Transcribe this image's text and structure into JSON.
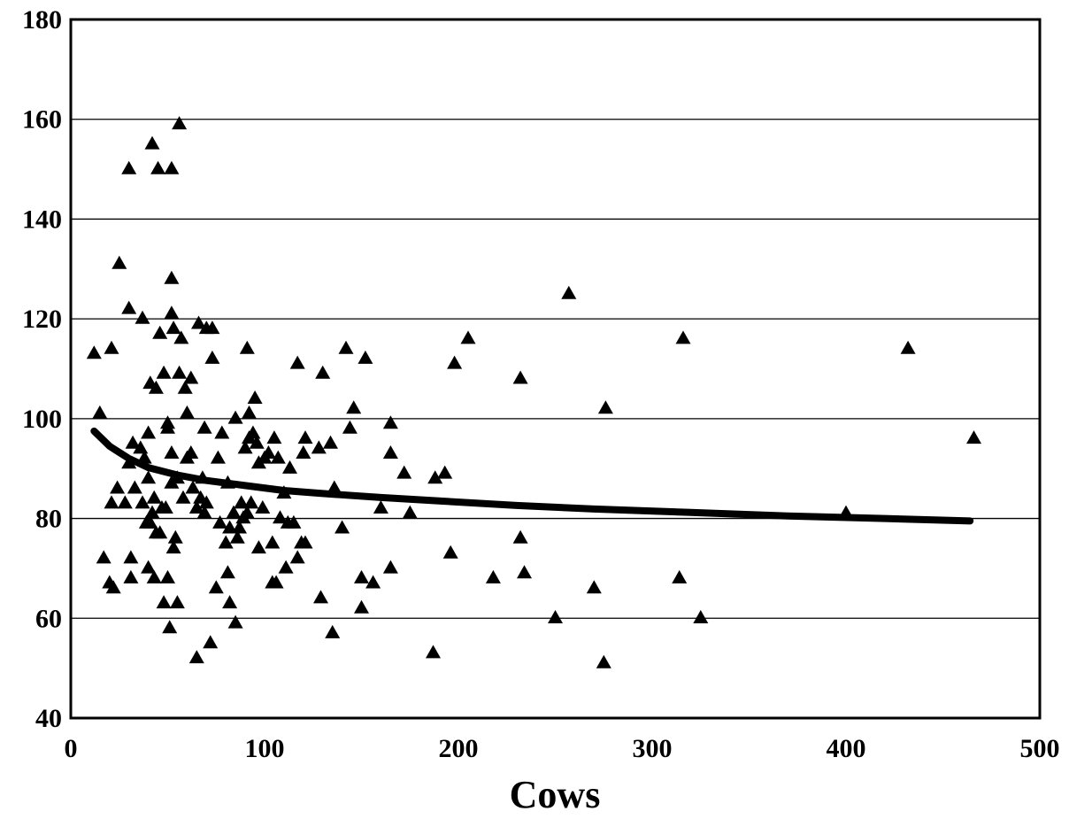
{
  "chart_data": {
    "type": "scatter",
    "title": "",
    "xlabel": "Cows",
    "ylabel": "",
    "xlim": [
      0,
      500
    ],
    "ylim": [
      40,
      180
    ],
    "xticks": [
      0,
      100,
      200,
      300,
      400,
      500
    ],
    "yticks": [
      40,
      60,
      80,
      100,
      120,
      140,
      160,
      180
    ],
    "grid": {
      "y": true,
      "x": false
    },
    "legend": "none",
    "marker": "triangle",
    "colors": {
      "points": "#000000",
      "trend": "#000000",
      "grid": "#000000",
      "background": "#ffffff"
    },
    "points": [
      [
        12,
        113
      ],
      [
        15,
        101
      ],
      [
        17,
        72
      ],
      [
        20,
        67
      ],
      [
        21,
        114
      ],
      [
        21,
        83
      ],
      [
        22,
        66
      ],
      [
        24,
        86
      ],
      [
        25,
        131
      ],
      [
        28,
        83
      ],
      [
        30,
        150
      ],
      [
        30,
        122
      ],
      [
        30,
        91
      ],
      [
        31,
        72
      ],
      [
        31,
        68
      ],
      [
        32,
        95
      ],
      [
        33,
        86
      ],
      [
        36,
        94
      ],
      [
        37,
        83
      ],
      [
        37,
        120
      ],
      [
        38,
        92
      ],
      [
        39,
        79
      ],
      [
        40,
        88
      ],
      [
        40,
        97
      ],
      [
        40,
        70
      ],
      [
        41,
        79
      ],
      [
        41,
        107
      ],
      [
        42,
        81
      ],
      [
        42,
        155
      ],
      [
        43,
        68
      ],
      [
        43,
        84
      ],
      [
        44,
        77
      ],
      [
        44,
        106
      ],
      [
        45,
        150
      ],
      [
        46,
        117
      ],
      [
        46,
        77
      ],
      [
        47,
        82
      ],
      [
        48,
        109
      ],
      [
        48,
        63
      ],
      [
        49,
        82
      ],
      [
        50,
        98
      ],
      [
        50,
        99
      ],
      [
        50,
        68
      ],
      [
        51,
        58
      ],
      [
        52,
        150
      ],
      [
        52,
        93
      ],
      [
        52,
        87
      ],
      [
        52,
        121
      ],
      [
        52,
        128
      ],
      [
        53,
        74
      ],
      [
        53,
        118
      ],
      [
        54,
        76
      ],
      [
        55,
        88
      ],
      [
        55,
        63
      ],
      [
        56,
        159
      ],
      [
        56,
        109
      ],
      [
        57,
        116
      ],
      [
        58,
        84
      ],
      [
        59,
        106
      ],
      [
        60,
        101
      ],
      [
        60,
        92
      ],
      [
        62,
        93
      ],
      [
        62,
        108
      ],
      [
        63,
        86
      ],
      [
        65,
        52
      ],
      [
        65,
        82
      ],
      [
        66,
        119
      ],
      [
        67,
        84
      ],
      [
        68,
        88
      ],
      [
        69,
        98
      ],
      [
        69,
        81
      ],
      [
        70,
        118
      ],
      [
        70,
        83
      ],
      [
        72,
        55
      ],
      [
        73,
        112
      ],
      [
        73,
        118
      ],
      [
        75,
        66
      ],
      [
        76,
        92
      ],
      [
        77,
        79
      ],
      [
        78,
        97
      ],
      [
        80,
        75
      ],
      [
        81,
        69
      ],
      [
        81,
        87
      ],
      [
        82,
        63
      ],
      [
        82,
        78
      ],
      [
        84,
        81
      ],
      [
        85,
        100
      ],
      [
        85,
        59
      ],
      [
        86,
        76
      ],
      [
        87,
        78
      ],
      [
        88,
        83
      ],
      [
        89,
        80
      ],
      [
        90,
        94
      ],
      [
        91,
        114
      ],
      [
        91,
        81
      ],
      [
        92,
        96
      ],
      [
        92,
        101
      ],
      [
        93,
        83
      ],
      [
        94,
        97
      ],
      [
        95,
        104
      ],
      [
        96,
        95
      ],
      [
        97,
        74
      ],
      [
        97,
        91
      ],
      [
        99,
        82
      ],
      [
        100,
        92
      ],
      [
        102,
        93
      ],
      [
        104,
        75
      ],
      [
        104,
        67
      ],
      [
        105,
        96
      ],
      [
        106,
        67
      ],
      [
        107,
        92
      ],
      [
        108,
        80
      ],
      [
        110,
        85
      ],
      [
        111,
        70
      ],
      [
        112,
        79
      ],
      [
        113,
        90
      ],
      [
        115,
        79
      ],
      [
        117,
        111
      ],
      [
        117,
        72
      ],
      [
        119,
        75
      ],
      [
        120,
        93
      ],
      [
        121,
        96
      ],
      [
        121,
        75
      ],
      [
        128,
        94
      ],
      [
        129,
        64
      ],
      [
        130,
        109
      ],
      [
        134,
        95
      ],
      [
        135,
        57
      ],
      [
        136,
        86
      ],
      [
        140,
        78
      ],
      [
        142,
        114
      ],
      [
        144,
        98
      ],
      [
        146,
        102
      ],
      [
        150,
        62
      ],
      [
        150,
        68
      ],
      [
        152,
        112
      ],
      [
        156,
        67
      ],
      [
        160,
        82
      ],
      [
        165,
        99
      ],
      [
        165,
        93
      ],
      [
        165,
        70
      ],
      [
        172,
        89
      ],
      [
        175,
        81
      ],
      [
        187,
        53
      ],
      [
        188,
        88
      ],
      [
        193,
        89
      ],
      [
        196,
        73
      ],
      [
        198,
        111
      ],
      [
        205,
        116
      ],
      [
        218,
        68
      ],
      [
        232,
        108
      ],
      [
        232,
        76
      ],
      [
        234,
        69
      ],
      [
        250,
        60
      ],
      [
        257,
        125
      ],
      [
        270,
        66
      ],
      [
        275,
        51
      ],
      [
        276,
        102
      ],
      [
        314,
        68
      ],
      [
        316,
        116
      ],
      [
        325,
        60
      ],
      [
        400,
        81
      ],
      [
        432,
        114
      ],
      [
        466,
        96
      ]
    ],
    "trend": {
      "type": "power",
      "x": [
        12,
        20,
        30,
        40,
        55,
        70,
        90,
        110,
        130,
        160,
        190,
        230,
        270,
        320,
        370,
        420,
        464
      ],
      "y": [
        97.5,
        94.5,
        92,
        90.2,
        88.7,
        87.6,
        86.6,
        85.6,
        85,
        84.2,
        83.5,
        82.6,
        81.9,
        81.2,
        80.5,
        80,
        79.5
      ]
    }
  }
}
